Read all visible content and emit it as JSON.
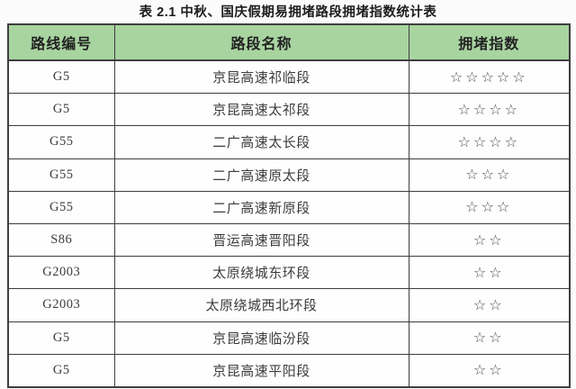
{
  "title": "表 2.1 中秋、国庆假期易拥堵路段拥堵指数统计表",
  "table": {
    "columns": [
      {
        "key": "route",
        "label": "路线编号"
      },
      {
        "key": "section",
        "label": "路段名称"
      },
      {
        "key": "index",
        "label": "拥堵指数"
      }
    ],
    "star_glyph": "☆",
    "rows": [
      {
        "route": "G5",
        "section": "京昆高速祁临段",
        "stars": 5
      },
      {
        "route": "G5",
        "section": "京昆高速太祁段",
        "stars": 4
      },
      {
        "route": "G55",
        "section": "二广高速太长段",
        "stars": 4
      },
      {
        "route": "G55",
        "section": "二广高速原太段",
        "stars": 3
      },
      {
        "route": "G55",
        "section": "二广高速新原段",
        "stars": 3
      },
      {
        "route": "S86",
        "section": "晋运高速晋阳段",
        "stars": 2
      },
      {
        "route": "G2003",
        "section": "太原绕城东环段",
        "stars": 2
      },
      {
        "route": "G2003",
        "section": "太原绕城西北环段",
        "stars": 2
      },
      {
        "route": "G5",
        "section": "京昆高速临汾段",
        "stars": 2
      },
      {
        "route": "G5",
        "section": "京昆高速平阳段",
        "stars": 2
      }
    ]
  },
  "colors": {
    "header_bg": "#a8d4a0",
    "border": "#3e3e3e",
    "body_text": "#3c3c3c",
    "star": "#4a4a4a"
  }
}
